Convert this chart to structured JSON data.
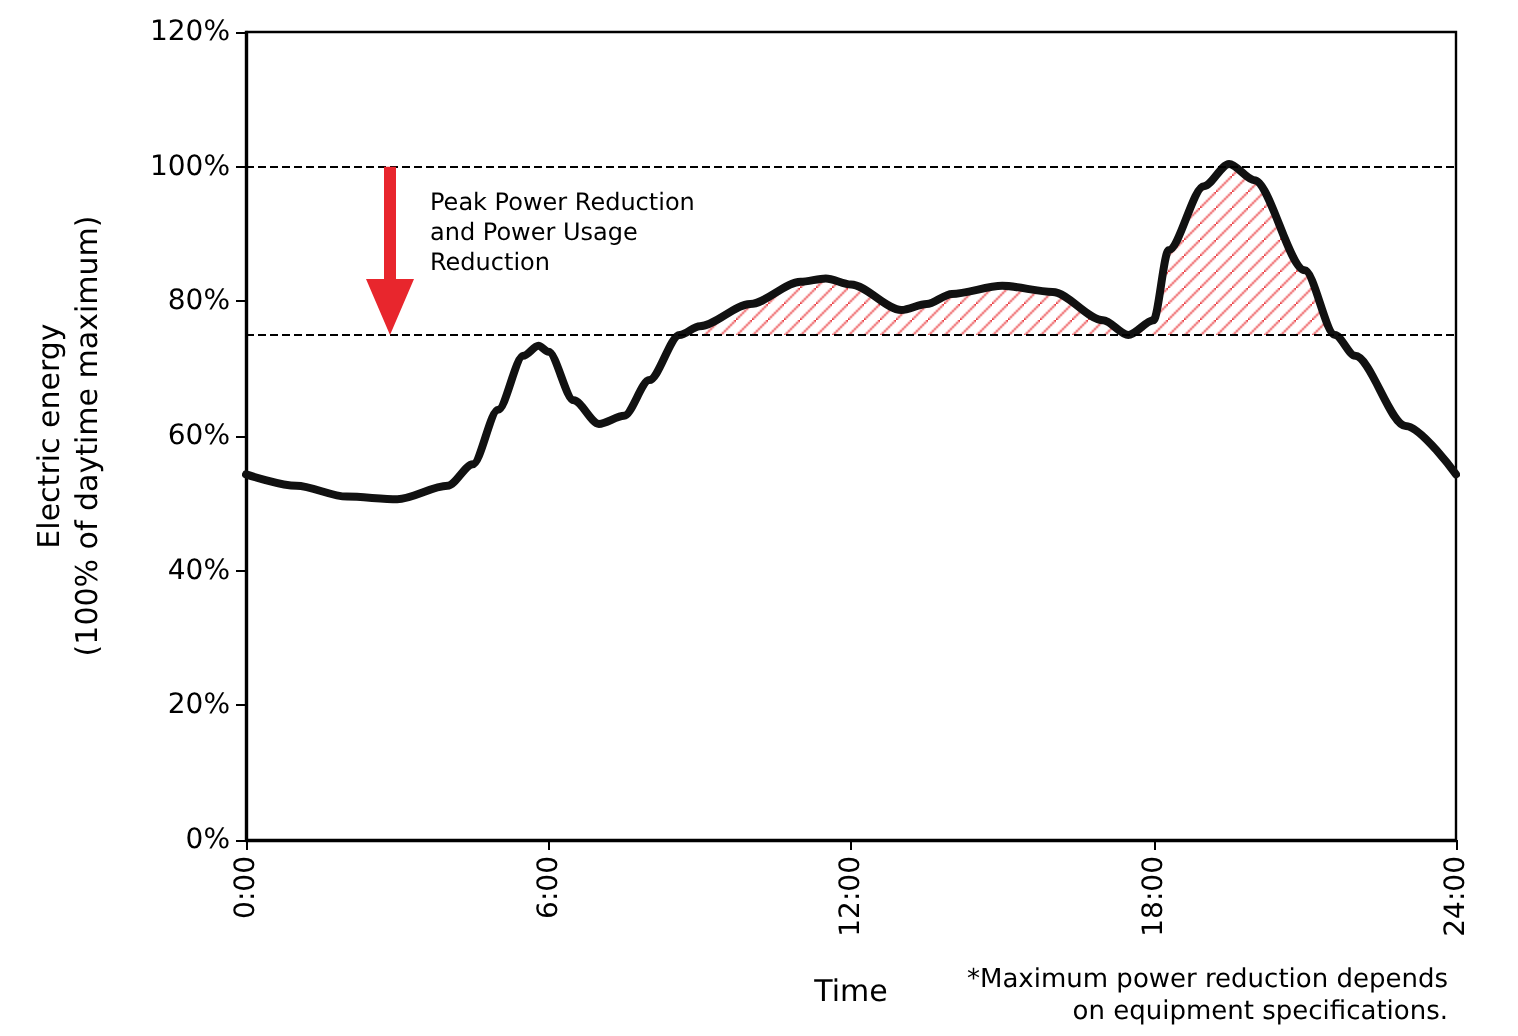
{
  "chart_data": {
    "type": "line",
    "xlabel": "Time",
    "ylabel": "Electric energy\n(100% of daytime maximum)",
    "x": [
      0,
      1,
      2,
      3,
      4,
      4.5,
      5,
      5.5,
      5.8,
      6,
      6.5,
      7,
      7.5,
      8,
      8.6,
      9,
      10,
      11,
      11.5,
      12,
      13,
      13.5,
      14,
      15,
      16,
      17,
      17.5,
      18,
      18.3,
      19,
      19.5,
      20,
      21,
      21.6,
      22,
      23,
      24
    ],
    "series": [
      {
        "color": "#111111",
        "values": [
          54.3,
          52.6,
          51,
          50.6,
          52.6,
          55.8,
          63.9,
          71.9,
          73.4,
          72.5,
          65.3,
          61.8,
          63,
          68.3,
          75,
          76.3,
          79.6,
          82.9,
          83.4,
          82.5,
          78.7,
          79.6,
          81.1,
          82.3,
          81.4,
          77.2,
          75,
          77.2,
          87.6,
          97.1,
          100.4,
          98,
          84.6,
          75,
          71.9,
          61.5,
          54.3
        ],
        "lower": [
          null,
          null,
          null,
          null,
          null,
          null,
          null,
          null,
          null,
          null,
          null,
          null,
          null,
          null,
          75,
          75,
          75,
          75,
          75,
          75,
          75,
          75,
          75,
          75,
          75,
          75,
          75,
          75,
          75,
          75,
          75,
          75,
          75,
          75,
          null,
          null,
          null
        ],
        "upper": [
          null,
          null,
          null,
          null,
          null,
          null,
          null,
          null,
          null,
          null,
          null,
          null,
          null,
          null,
          75,
          76.3,
          79.6,
          82.9,
          83.4,
          82.5,
          78.7,
          79.6,
          81.1,
          82.3,
          81.4,
          77.2,
          75,
          77.2,
          87.6,
          97.1,
          100.4,
          98,
          84.6,
          75,
          null,
          null,
          null
        ]
      }
    ],
    "xlim": [
      0,
      24
    ],
    "xticks": [
      {
        "value": 0,
        "label": "0:00"
      },
      {
        "value": 6,
        "label": "6:00"
      },
      {
        "value": 12,
        "label": "12:00"
      },
      {
        "value": 18,
        "label": "18:00"
      },
      {
        "value": 24,
        "label": "24:00"
      }
    ],
    "ylim": [
      0,
      120
    ],
    "yticks": [
      {
        "value": 0,
        "label": "0%"
      },
      {
        "value": 20,
        "label": "20%"
      },
      {
        "value": 40,
        "label": "40%"
      },
      {
        "value": 60,
        "label": "60%"
      },
      {
        "value": 80,
        "label": "80%"
      },
      {
        "value": 100,
        "label": "100%"
      },
      {
        "value": 120,
        "label": "120%"
      }
    ],
    "ref_lines": [
      {
        "axis": "y",
        "value": 100,
        "line_style": "dashed"
      },
      {
        "axis": "y",
        "value": 75,
        "line_style": "dashed"
      }
    ],
    "annotations": [
      "Peak Power Reduction\nand Power Usage\nReduction",
      "*Maximum power reduction depends\non equipment specifications."
    ],
    "grid": false,
    "marker": "none",
    "line_style": "solid"
  }
}
